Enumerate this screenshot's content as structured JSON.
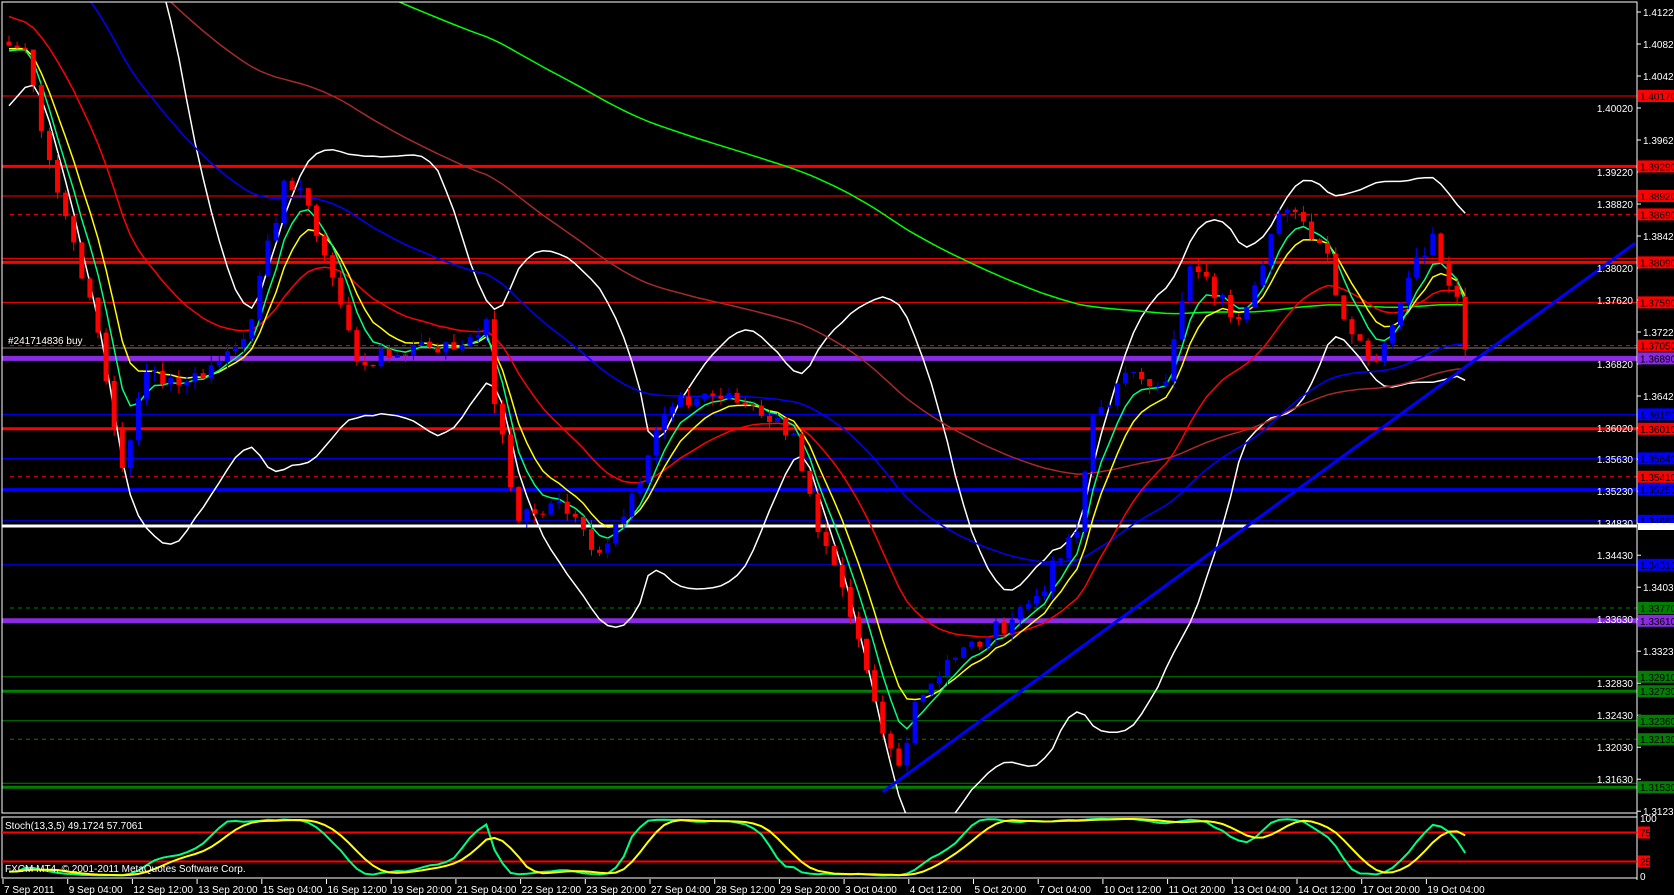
{
  "order_label": "#241714836 buy",
  "copyright": "FXCM MT4, © 2001-2011 MetaQuotes Software Corp.",
  "stoch": {
    "label": "Stoch(13,3,5) 49.1724 57.7061",
    "levels": [
      75,
      25
    ],
    "axis_labels": [
      "100",
      "75",
      "25",
      "0"
    ],
    "colors": {
      "main": "#00ff7f",
      "signal": "#ffff00",
      "level": "#ff0000"
    }
  },
  "colors": {
    "background": "#000000",
    "bull_candle": "#0000ff",
    "bear_candle": "#ff0000",
    "ema_fast": "#00ff7f",
    "ema_mid": "#ffff00",
    "ema_slow": "#ff0000",
    "ma_blue": "#0000ff",
    "ma_brown": "#a52a2a",
    "ma_green": "#00ff00",
    "bollinger": "#ffffff",
    "trendline": "#0000ff"
  },
  "chart_data": {
    "type": "candlestick",
    "x_ticks": [
      "7 Sep 2011",
      "9 Sep 04:00",
      "12 Sep 12:00",
      "13 Sep 20:00",
      "15 Sep 04:00",
      "16 Sep 12:00",
      "19 Sep 20:00",
      "21 Sep 04:00",
      "22 Sep 12:00",
      "23 Sep 20:00",
      "27 Sep 04:00",
      "28 Sep 12:00",
      "29 Sep 20:00",
      "3 Oct 04:00",
      "4 Oct 12:00",
      "5 Oct 20:00",
      "7 Oct 04:00",
      "10 Oct 12:00",
      "11 Oct 20:00",
      "13 Oct 04:00",
      "14 Oct 12:00",
      "17 Oct 20:00",
      "19 Oct 04:00"
    ],
    "y_ticks": [
      "1.41220",
      "1.40820",
      "1.40420",
      "1.40020",
      "1.39620",
      "1.39220",
      "1.38820",
      "1.38420",
      "1.38020",
      "1.37620",
      "1.37220",
      "1.36820",
      "1.36420",
      "1.36020",
      "1.35630",
      "1.35230",
      "1.34830",
      "1.34430",
      "1.34030",
      "1.33630",
      "1.33230",
      "1.32830",
      "1.32430",
      "1.32030",
      "1.31630",
      "1.31230"
    ],
    "ylim": [
      1.3123,
      1.4122
    ],
    "close_path": [
      [
        0,
        1.408
      ],
      [
        2,
        1.4075
      ],
      [
        5,
        1.3937
      ],
      [
        10,
        1.3765
      ],
      [
        14,
        1.3552
      ],
      [
        17,
        1.3672
      ],
      [
        22,
        1.366
      ],
      [
        26,
        1.3685
      ],
      [
        30,
        1.3738
      ],
      [
        34,
        1.3911
      ],
      [
        37,
        1.388
      ],
      [
        40,
        1.379
      ],
      [
        43,
        1.3685
      ],
      [
        47,
        1.369
      ],
      [
        51,
        1.371
      ],
      [
        55,
        1.37
      ],
      [
        59,
        1.3738
      ],
      [
        60,
        1.3632
      ],
      [
        63,
        1.3486
      ],
      [
        68,
        1.351
      ],
      [
        73,
        1.3446
      ],
      [
        77,
        1.352
      ],
      [
        81,
        1.362
      ],
      [
        86,
        1.3645
      ],
      [
        92,
        1.363
      ],
      [
        97,
        1.3595
      ],
      [
        100,
        1.3472
      ],
      [
        104,
        1.3366
      ],
      [
        108,
        1.322
      ],
      [
        110,
        1.318
      ],
      [
        112,
        1.326
      ],
      [
        116,
        1.3312
      ],
      [
        121,
        1.334
      ],
      [
        127,
        1.3392
      ],
      [
        132,
        1.3472
      ],
      [
        134,
        1.3618
      ],
      [
        139,
        1.3672
      ],
      [
        143,
        1.366
      ],
      [
        146,
        1.3804
      ],
      [
        152,
        1.3738
      ],
      [
        157,
        1.387
      ],
      [
        160,
        1.386
      ],
      [
        163,
        1.382
      ],
      [
        165,
        1.3738
      ],
      [
        169,
        1.3685
      ],
      [
        173,
        1.379
      ],
      [
        176,
        1.3845
      ],
      [
        179,
        1.3766
      ],
      [
        180,
        1.37
      ]
    ],
    "horizontal_lines": [
      {
        "price": 1.4017,
        "color": "#ff0000",
        "style": "solid",
        "weight": "thin",
        "label": "1.40170"
      },
      {
        "price": 1.3929,
        "color": "#ff0000",
        "style": "solid",
        "weight": "thick",
        "label": "1.39290"
      },
      {
        "price": 1.3892,
        "color": "#ff0000",
        "style": "solid",
        "weight": "thin",
        "label": "1.38920"
      },
      {
        "price": 1.3869,
        "color": "#ff0000",
        "style": "dashed",
        "weight": "thin",
        "label": "1.38690"
      },
      {
        "price": 1.3814,
        "color": "#ff0000",
        "style": "solid",
        "weight": "thin",
        "label": ""
      },
      {
        "price": 1.3809,
        "color": "#ff0000",
        "style": "solid",
        "weight": "thick",
        "label": "1.38090"
      },
      {
        "price": 1.3759,
        "color": "#ff0000",
        "style": "solid",
        "weight": "thin",
        "label": "1.37590"
      },
      {
        "price": 1.3705,
        "color": "#ff0000",
        "style": "dashed",
        "weight": "thin",
        "label": "1.37050"
      },
      {
        "price": 1.3689,
        "color": "#8a2be2",
        "style": "solid",
        "weight": "heavy",
        "label": "1.36890"
      },
      {
        "price": 1.3619,
        "color": "#0000ff",
        "style": "solid",
        "weight": "thin",
        "label": "1.36190"
      },
      {
        "price": 1.3601,
        "color": "#ff0000",
        "style": "solid",
        "weight": "thick",
        "label": "1.36010"
      },
      {
        "price": 1.3564,
        "color": "#0000ff",
        "style": "solid",
        "weight": "thin",
        "label": "1.35640"
      },
      {
        "price": 1.3541,
        "color": "#ff0000",
        "style": "dashed",
        "weight": "thin",
        "label": "1.35410"
      },
      {
        "price": 1.3525,
        "color": "#0000ff",
        "style": "solid",
        "weight": "thick",
        "label": "1.35250"
      },
      {
        "price": 1.3486,
        "color": "#0000ff",
        "style": "solid",
        "weight": "thin",
        "label": "1.34860"
      },
      {
        "price": 1.34795,
        "color": "#ffffff",
        "style": "solid",
        "weight": "thick",
        "label": ""
      },
      {
        "price": 1.3431,
        "color": "#0000ff",
        "style": "solid",
        "weight": "thin",
        "label": "1.34310"
      },
      {
        "price": 1.3377,
        "color": "#008000",
        "style": "dashed",
        "weight": "thin",
        "label": "1.33770"
      },
      {
        "price": 1.3361,
        "color": "#8a2be2",
        "style": "solid",
        "weight": "heavy",
        "label": "1.33610"
      },
      {
        "price": 1.3291,
        "color": "#008000",
        "style": "solid",
        "weight": "thin",
        "label": "1.32910"
      },
      {
        "price": 1.3273,
        "color": "#008000",
        "style": "solid",
        "weight": "thick",
        "label": "1.32730"
      },
      {
        "price": 1.3236,
        "color": "#008000",
        "style": "solid",
        "weight": "thin",
        "label": "1.32360"
      },
      {
        "price": 1.3213,
        "color": "#008000",
        "style": "dashed",
        "weight": "thin",
        "label": "1.32130"
      },
      {
        "price": 1.3158,
        "color": "#008000",
        "style": "solid",
        "weight": "thin",
        "label": ""
      },
      {
        "price": 1.3153,
        "color": "#008000",
        "style": "solid",
        "weight": "thick",
        "label": "1.31530"
      }
    ],
    "order_line_price": 1.3702,
    "trendline": {
      "from": [
        108,
        1.3147
      ],
      "to": [
        201,
        1.3833
      ]
    }
  }
}
